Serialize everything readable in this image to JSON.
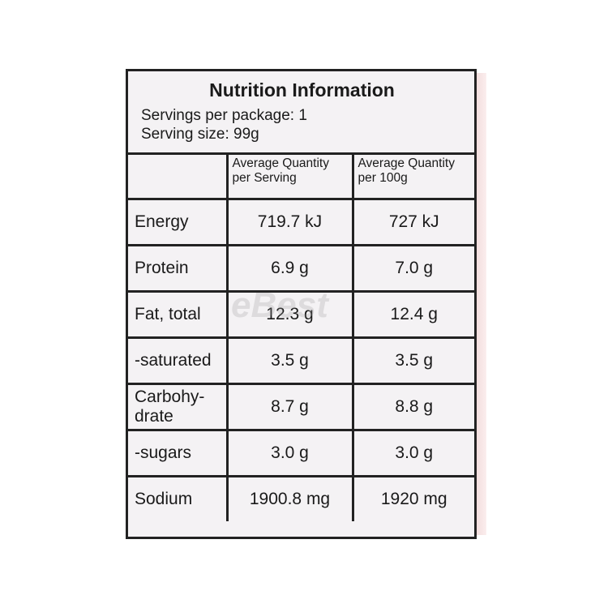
{
  "header": {
    "title": "Nutrition Information",
    "servings_per_package": "Servings per package: 1",
    "serving_size": "Serving size: 99g"
  },
  "watermark": "eBest",
  "table": {
    "columns": [
      "Average Quantity per Serving",
      "Average Quantity per 100g"
    ],
    "rows": [
      [
        "Energy",
        "719.7 kJ",
        "727 kJ"
      ],
      [
        "Protein",
        "6.9 g",
        "7.0 g"
      ],
      [
        "Fat, total",
        "12.3 g",
        "12.4 g"
      ],
      [
        "-saturated",
        "3.5 g",
        "3.5 g"
      ],
      [
        "Carbohy-\ndrate",
        "8.7 g",
        "8.8 g"
      ],
      [
        "-sugars",
        "3.0 g",
        "3.0 g"
      ],
      [
        "Sodium",
        "1900.8 mg",
        "1920 mg"
      ]
    ]
  }
}
